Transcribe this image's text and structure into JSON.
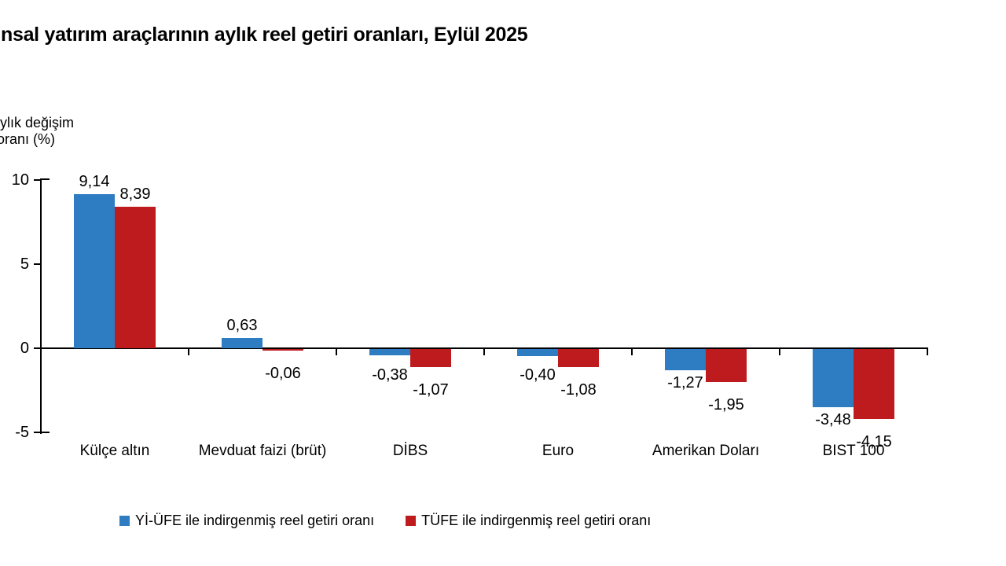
{
  "chart_data": {
    "type": "bar",
    "title": "nsal yatırım araçlarının aylık reel getiri oranları, Eylül 2025",
    "y_axis_label_lines": [
      "ylık değişim",
      "oranı (%)"
    ],
    "categories": [
      "Külçe altın",
      "Mevduat faizi (brüt)",
      "DİBS",
      "Euro",
      "Amerikan Doları",
      "BIST 100"
    ],
    "series": [
      {
        "name": "Yİ-ÜFE ile indirgenmiş reel getiri oranı",
        "color": "#2E7CC1",
        "values": [
          9.14,
          0.63,
          -0.38,
          -0.4,
          -1.27,
          -3.48
        ]
      },
      {
        "name": "TÜFE ile indirgenmiş reel getiri oranı",
        "color": "#BE1B1F",
        "values": [
          8.39,
          -0.06,
          -1.07,
          -1.08,
          -1.95,
          -4.15
        ]
      }
    ],
    "y_ticks": [
      10,
      5,
      0,
      -5
    ],
    "ylim": [
      -5,
      10
    ],
    "grid": false,
    "legend_position": "bottom",
    "decimal_separator": ",",
    "value_label_format": "0,00"
  },
  "colors": {
    "axis": "#000000",
    "text": "#000000",
    "background": "#FFFFFF"
  }
}
